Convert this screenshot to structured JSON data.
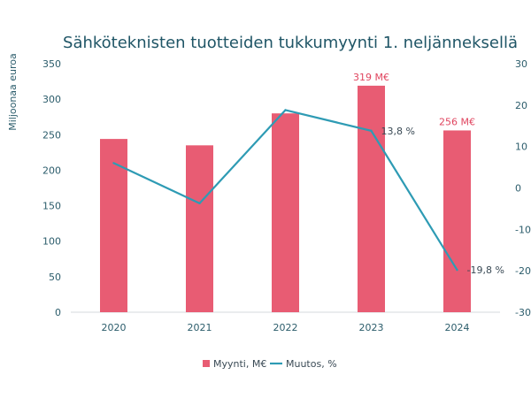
{
  "chart_data": {
    "type": "bar",
    "title": "Sähköteknisten tuotteiden tukkumyynti 1. neljänneksellä",
    "ylabel": "Miljoonaa euroa",
    "ylabel_right": "",
    "xlabel": "",
    "categories": [
      "2020",
      "2021",
      "2022",
      "2023",
      "2024"
    ],
    "ylim": [
      0,
      350
    ],
    "y_ticks": [
      "0",
      "50",
      "100",
      "150",
      "200",
      "250",
      "300",
      "350"
    ],
    "y2lim": [
      -30,
      30
    ],
    "y2_ticks": [
      "-30",
      "-20",
      "-10",
      "0",
      "10",
      "20",
      "30"
    ],
    "grid": false,
    "legend_position": "bottom",
    "series": [
      {
        "name": "Myynti, M€",
        "type": "bar",
        "axis": "left",
        "color": "#e85c73",
        "values": [
          244,
          235,
          280,
          319,
          256
        ],
        "data_labels": [
          "",
          "",
          "",
          "319 M€",
          "256 M€"
        ]
      },
      {
        "name": "Muutos, %",
        "type": "line",
        "axis": "right",
        "color": "#2e9bb4",
        "values": [
          6,
          -3.7,
          18.8,
          13.8,
          -19.8
        ],
        "data_labels": [
          "",
          "",
          "",
          "13,8 %",
          "-19,8 %"
        ]
      }
    ]
  }
}
